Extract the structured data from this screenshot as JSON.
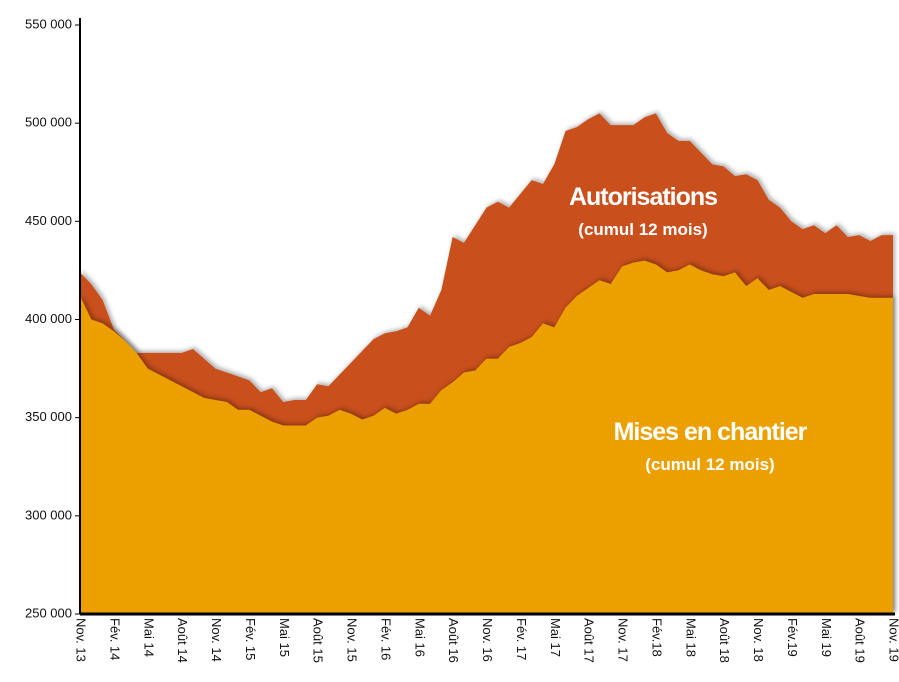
{
  "chart_data": {
    "type": "area",
    "categories": [
      "Nov. 13",
      null,
      null,
      "Fév. 14",
      null,
      null,
      "Mai 14",
      null,
      null,
      "Août 14",
      null,
      null,
      "Nov. 14",
      null,
      null,
      "Fév. 15",
      null,
      null,
      "Mai 15",
      null,
      null,
      "Août 15",
      null,
      null,
      "Nov. 15",
      null,
      null,
      "Fév. 16",
      null,
      null,
      "Mai 16",
      null,
      null,
      "Août 16",
      null,
      null,
      "Nov. 16",
      null,
      null,
      "Fév. 17",
      null,
      null,
      "Mai 17",
      null,
      null,
      "Août 17",
      null,
      null,
      "Nov. 17",
      null,
      null,
      "Fév.18",
      null,
      null,
      "Mai 18",
      null,
      null,
      "Août 18",
      null,
      null,
      "Nov. 18",
      null,
      null,
      "Fév.19",
      null,
      null,
      "Mai 19",
      null,
      null,
      "Août 19",
      null,
      null,
      "Nov. 19"
    ],
    "series": [
      {
        "name": "Autorisations",
        "note": "(cumul 12 mois)",
        "color": "#c9501c",
        "values": [
          424000,
          418000,
          410000,
          395000,
          389000,
          383000,
          383000,
          383000,
          383000,
          383000,
          385000,
          380000,
          375000,
          373000,
          371000,
          369000,
          363000,
          365000,
          358000,
          359000,
          359000,
          367000,
          366000,
          372000,
          378000,
          384000,
          390000,
          393000,
          394000,
          396000,
          406000,
          402000,
          415000,
          442000,
          439000,
          448000,
          457000,
          460000,
          457000,
          464000,
          471000,
          469000,
          479000,
          496000,
          498000,
          502000,
          505000,
          499000,
          499000,
          499000,
          503000,
          505000,
          495000,
          491000,
          491000,
          485000,
          479000,
          478000,
          473000,
          474000,
          471000,
          461000,
          457000,
          450000,
          446000,
          448000,
          444000,
          448000,
          442000,
          443000,
          440000,
          443000,
          443000
        ]
      },
      {
        "name": "Mises en chantier",
        "note": "(cumul 12 mois)",
        "color": "#eba000",
        "values": [
          412000,
          400000,
          398000,
          394000,
          389000,
          383000,
          375000,
          372000,
          369000,
          366000,
          363000,
          360000,
          359000,
          358000,
          354000,
          354000,
          351000,
          348000,
          346000,
          346000,
          346000,
          350000,
          351000,
          354000,
          352000,
          349000,
          351000,
          355000,
          352000,
          354000,
          357000,
          357000,
          364000,
          368000,
          373000,
          374000,
          380000,
          380000,
          386000,
          388000,
          391000,
          398000,
          396000,
          406000,
          412000,
          416000,
          420000,
          418000,
          427000,
          429000,
          430000,
          428000,
          424000,
          425000,
          428000,
          425000,
          423000,
          422000,
          424000,
          417000,
          421000,
          415000,
          417000,
          414000,
          411000,
          413000,
          413000,
          413000,
          413000,
          412000,
          411000,
          411000,
          411000
        ]
      }
    ],
    "ylim": [
      250000,
      550000
    ],
    "yticks": [
      {
        "value": 250000,
        "label": "250 000"
      },
      {
        "value": 300000,
        "label": "300 000"
      },
      {
        "value": 350000,
        "label": "350 000"
      },
      {
        "value": 400000,
        "label": "400 000"
      },
      {
        "value": 450000,
        "label": "450 000"
      },
      {
        "value": 500000,
        "label": "500 000"
      },
      {
        "value": 550000,
        "label": "550 000"
      }
    ],
    "grid": false
  }
}
